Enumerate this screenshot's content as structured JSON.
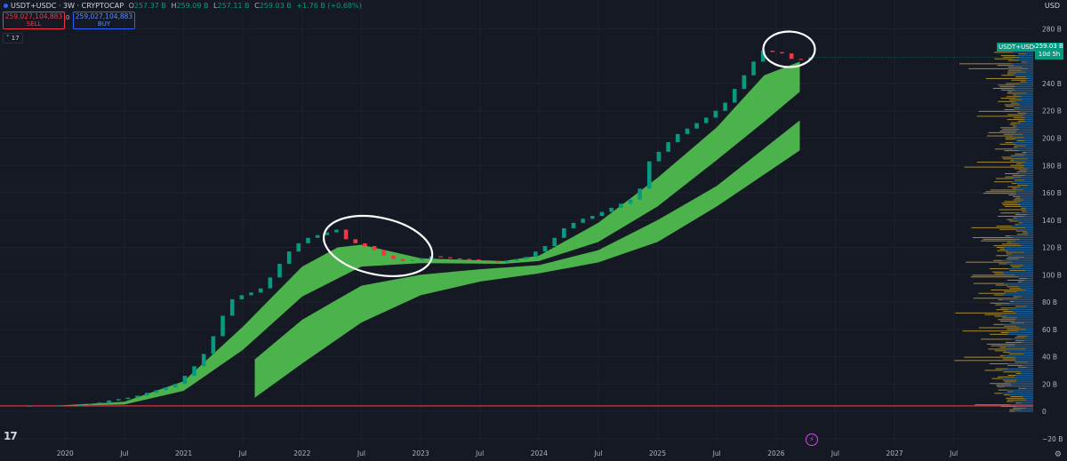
{
  "header": {
    "symbol": "USDT+USDC · 3W · CRYPTOCAP",
    "open_label": "O",
    "open": "257.37 B",
    "high_label": "H",
    "high": "259.09 B",
    "low_label": "L",
    "low": "257.11 B",
    "close_label": "C",
    "close": "259.03 B",
    "change": "+1.76 B (+0.68%)"
  },
  "trade": {
    "sell_price": "259,027,104,883",
    "sell_label": "SELL",
    "spread": "0",
    "buy_price": "259,027,104,883",
    "buy_label": "BUY"
  },
  "indicator_count": "17",
  "currency": "USD",
  "price_tag": {
    "symbol": "USDT+USDC",
    "value": "259.03 B",
    "countdown": "10d 5h"
  },
  "tv_logo": "17",
  "chart_data": {
    "type": "candlestick",
    "x_tick_labels": [
      "2020",
      "Jul",
      "2021",
      "Jul",
      "2022",
      "Jul",
      "2023",
      "Jul",
      "2024",
      "Jul",
      "2025",
      "Jul",
      "2026",
      "Jul",
      "2027",
      "Jul"
    ],
    "x_tick_dates": [
      2020.0,
      2020.5,
      2021.0,
      2021.5,
      2022.0,
      2022.5,
      2023.0,
      2023.5,
      2024.0,
      2024.5,
      2025.0,
      2025.5,
      2026.0,
      2026.5,
      2027.0,
      2027.5
    ],
    "y_tick_labels": [
      "−20 B",
      "0",
      "20 B",
      "40 B",
      "60 B",
      "80 B",
      "100 B",
      "120 B",
      "140 B",
      "160 B",
      "180 B",
      "200 B",
      "220 B",
      "240 B",
      "280 B"
    ],
    "y_tick_values": [
      -20,
      0,
      20,
      40,
      60,
      80,
      100,
      120,
      140,
      160,
      180,
      200,
      220,
      240,
      280
    ],
    "y_range": [
      -24,
      292
    ],
    "x_range": [
      2019.45,
      2028.17
    ],
    "up_color": "#089981",
    "down_color": "#f23645",
    "band_color": "#4cb24c",
    "last_price": 259.03,
    "candles": [
      {
        "x": 2019.7,
        "o": 4.0,
        "c": 4.2
      },
      {
        "x": 2019.95,
        "o": 4.2,
        "c": 4.4
      },
      {
        "x": 2020.13,
        "o": 4.4,
        "c": 4.8
      },
      {
        "x": 2020.21,
        "o": 4.8,
        "c": 5.5
      },
      {
        "x": 2020.29,
        "o": 5.5,
        "c": 6.5
      },
      {
        "x": 2020.37,
        "o": 6.5,
        "c": 8.0
      },
      {
        "x": 2020.45,
        "o": 8.0,
        "c": 9.0
      },
      {
        "x": 2020.53,
        "o": 9.0,
        "c": 10.0
      },
      {
        "x": 2020.61,
        "o": 10.0,
        "c": 11.5
      },
      {
        "x": 2020.69,
        "o": 11.5,
        "c": 13.5
      },
      {
        "x": 2020.77,
        "o": 13.5,
        "c": 15.5
      },
      {
        "x": 2020.85,
        "o": 15.5,
        "c": 17.5
      },
      {
        "x": 2020.93,
        "o": 17.5,
        "c": 20.0
      },
      {
        "x": 2021.01,
        "o": 20.0,
        "c": 26.0
      },
      {
        "x": 2021.09,
        "o": 26.0,
        "c": 33.0
      },
      {
        "x": 2021.17,
        "o": 33.0,
        "c": 42.0
      },
      {
        "x": 2021.25,
        "o": 42.0,
        "c": 55.0
      },
      {
        "x": 2021.33,
        "o": 55.0,
        "c": 70.0
      },
      {
        "x": 2021.41,
        "o": 70.0,
        "c": 82.0
      },
      {
        "x": 2021.49,
        "o": 82.0,
        "c": 85.0
      },
      {
        "x": 2021.57,
        "o": 85.0,
        "c": 87.0
      },
      {
        "x": 2021.65,
        "o": 87.0,
        "c": 90.0
      },
      {
        "x": 2021.73,
        "o": 90.0,
        "c": 98.0
      },
      {
        "x": 2021.81,
        "o": 98.0,
        "c": 108.0
      },
      {
        "x": 2021.89,
        "o": 108.0,
        "c": 117.0
      },
      {
        "x": 2021.97,
        "o": 117.0,
        "c": 123.0
      },
      {
        "x": 2022.05,
        "o": 123.0,
        "c": 127.0
      },
      {
        "x": 2022.13,
        "o": 127.0,
        "c": 129.0
      },
      {
        "x": 2022.21,
        "o": 129.0,
        "c": 131.0
      },
      {
        "x": 2022.29,
        "o": 131.0,
        "c": 133.0
      },
      {
        "x": 2022.37,
        "o": 133.0,
        "c": 126.0
      },
      {
        "x": 2022.45,
        "o": 126.0,
        "c": 123.0
      },
      {
        "x": 2022.53,
        "o": 123.0,
        "c": 121.0
      },
      {
        "x": 2022.61,
        "o": 121.0,
        "c": 118.0
      },
      {
        "x": 2022.69,
        "o": 118.0,
        "c": 114.0
      },
      {
        "x": 2022.77,
        "o": 114.0,
        "c": 111.5
      },
      {
        "x": 2022.85,
        "o": 111.5,
        "c": 110.0
      },
      {
        "x": 2022.93,
        "o": 110.0,
        "c": 110.8
      },
      {
        "x": 2023.01,
        "o": 110.8,
        "c": 111.5
      },
      {
        "x": 2023.09,
        "o": 111.5,
        "c": 113.5
      },
      {
        "x": 2023.17,
        "o": 113.5,
        "c": 112.8
      },
      {
        "x": 2023.25,
        "o": 112.8,
        "c": 112.0
      },
      {
        "x": 2023.33,
        "o": 112.0,
        "c": 111.6
      },
      {
        "x": 2023.41,
        "o": 111.6,
        "c": 111.2
      },
      {
        "x": 2023.49,
        "o": 111.2,
        "c": 110.6
      },
      {
        "x": 2023.57,
        "o": 110.6,
        "c": 109.8
      },
      {
        "x": 2023.65,
        "o": 109.8,
        "c": 109.2
      },
      {
        "x": 2023.73,
        "o": 109.2,
        "c": 110.0
      },
      {
        "x": 2023.81,
        "o": 110.0,
        "c": 111.5
      },
      {
        "x": 2023.89,
        "o": 111.5,
        "c": 113.0
      },
      {
        "x": 2023.97,
        "o": 113.0,
        "c": 117.0
      },
      {
        "x": 2024.05,
        "o": 117.0,
        "c": 121.0
      },
      {
        "x": 2024.13,
        "o": 121.0,
        "c": 127.0
      },
      {
        "x": 2024.21,
        "o": 127.0,
        "c": 134.0
      },
      {
        "x": 2024.29,
        "o": 134.0,
        "c": 138.0
      },
      {
        "x": 2024.37,
        "o": 138.0,
        "c": 141.0
      },
      {
        "x": 2024.45,
        "o": 141.0,
        "c": 143.0
      },
      {
        "x": 2024.53,
        "o": 143.0,
        "c": 146.0
      },
      {
        "x": 2024.61,
        "o": 146.0,
        "c": 149.0
      },
      {
        "x": 2024.69,
        "o": 149.0,
        "c": 152.0
      },
      {
        "x": 2024.77,
        "o": 152.0,
        "c": 155.0
      },
      {
        "x": 2024.85,
        "o": 155.0,
        "c": 163.0
      },
      {
        "x": 2024.93,
        "o": 163.0,
        "c": 183.0
      },
      {
        "x": 2025.01,
        "o": 183.0,
        "c": 190.0
      },
      {
        "x": 2025.09,
        "o": 190.0,
        "c": 197.0
      },
      {
        "x": 2025.17,
        "o": 197.0,
        "c": 203.0
      },
      {
        "x": 2025.25,
        "o": 203.0,
        "c": 207.0
      },
      {
        "x": 2025.33,
        "o": 207.0,
        "c": 211.0
      },
      {
        "x": 2025.41,
        "o": 211.0,
        "c": 215.0
      },
      {
        "x": 2025.49,
        "o": 215.0,
        "c": 220.0
      },
      {
        "x": 2025.57,
        "o": 220.0,
        "c": 226.0
      },
      {
        "x": 2025.65,
        "o": 226.0,
        "c": 236.0
      },
      {
        "x": 2025.73,
        "o": 236.0,
        "c": 246.0
      },
      {
        "x": 2025.81,
        "o": 246.0,
        "c": 256.0
      },
      {
        "x": 2025.89,
        "o": 256.0,
        "c": 264.0
      },
      {
        "x": 2025.97,
        "o": 264.0,
        "c": 263.0
      },
      {
        "x": 2026.05,
        "o": 263.0,
        "c": 262.0
      },
      {
        "x": 2026.13,
        "o": 262.0,
        "c": 258.0
      },
      {
        "x": 2026.21,
        "o": 258.0,
        "c": 257.4
      },
      {
        "x": 2026.29,
        "o": 257.4,
        "c": 259.03
      }
    ],
    "band_fast_upper": [
      {
        "x": 2019.95,
        "y": 4.3
      },
      {
        "x": 2020.5,
        "y": 7.0
      },
      {
        "x": 2021.0,
        "y": 22.0
      },
      {
        "x": 2021.5,
        "y": 62.0
      },
      {
        "x": 2022.0,
        "y": 106.0
      },
      {
        "x": 2022.3,
        "y": 120.0
      },
      {
        "x": 2022.5,
        "y": 122.0
      },
      {
        "x": 2023.0,
        "y": 112.0
      },
      {
        "x": 2023.7,
        "y": 110.0
      },
      {
        "x": 2024.0,
        "y": 114.0
      },
      {
        "x": 2024.5,
        "y": 138.0
      },
      {
        "x": 2025.0,
        "y": 171.0
      },
      {
        "x": 2025.5,
        "y": 208.0
      },
      {
        "x": 2025.9,
        "y": 246.0
      },
      {
        "x": 2026.2,
        "y": 256.0
      }
    ],
    "band_fast_lower": [
      {
        "x": 2019.95,
        "y": 4.0
      },
      {
        "x": 2020.5,
        "y": 5.0
      },
      {
        "x": 2021.0,
        "y": 15.0
      },
      {
        "x": 2021.5,
        "y": 45.0
      },
      {
        "x": 2022.0,
        "y": 84.0
      },
      {
        "x": 2022.5,
        "y": 106.0
      },
      {
        "x": 2023.0,
        "y": 108.5
      },
      {
        "x": 2023.7,
        "y": 108.0
      },
      {
        "x": 2024.0,
        "y": 110.0
      },
      {
        "x": 2024.5,
        "y": 124.0
      },
      {
        "x": 2025.0,
        "y": 150.0
      },
      {
        "x": 2025.5,
        "y": 184.0
      },
      {
        "x": 2025.9,
        "y": 212.0
      },
      {
        "x": 2026.2,
        "y": 234.0
      }
    ],
    "band_slow_upper": [
      {
        "x": 2021.6,
        "y": 38.0
      },
      {
        "x": 2022.0,
        "y": 67.0
      },
      {
        "x": 2022.5,
        "y": 92.0
      },
      {
        "x": 2023.0,
        "y": 100.0
      },
      {
        "x": 2023.5,
        "y": 104.0
      },
      {
        "x": 2024.0,
        "y": 107.0
      },
      {
        "x": 2024.5,
        "y": 118.0
      },
      {
        "x": 2025.0,
        "y": 140.0
      },
      {
        "x": 2025.5,
        "y": 165.0
      },
      {
        "x": 2026.2,
        "y": 213.0
      }
    ],
    "band_slow_lower": [
      {
        "x": 2021.6,
        "y": 10.0
      },
      {
        "x": 2022.0,
        "y": 35.0
      },
      {
        "x": 2022.5,
        "y": 65.0
      },
      {
        "x": 2023.0,
        "y": 85.0
      },
      {
        "x": 2023.5,
        "y": 95.0
      },
      {
        "x": 2024.0,
        "y": 101.0
      },
      {
        "x": 2024.5,
        "y": 109.0
      },
      {
        "x": 2025.0,
        "y": 124.0
      },
      {
        "x": 2025.5,
        "y": 150.0
      },
      {
        "x": 2026.2,
        "y": 191.0
      }
    ]
  }
}
